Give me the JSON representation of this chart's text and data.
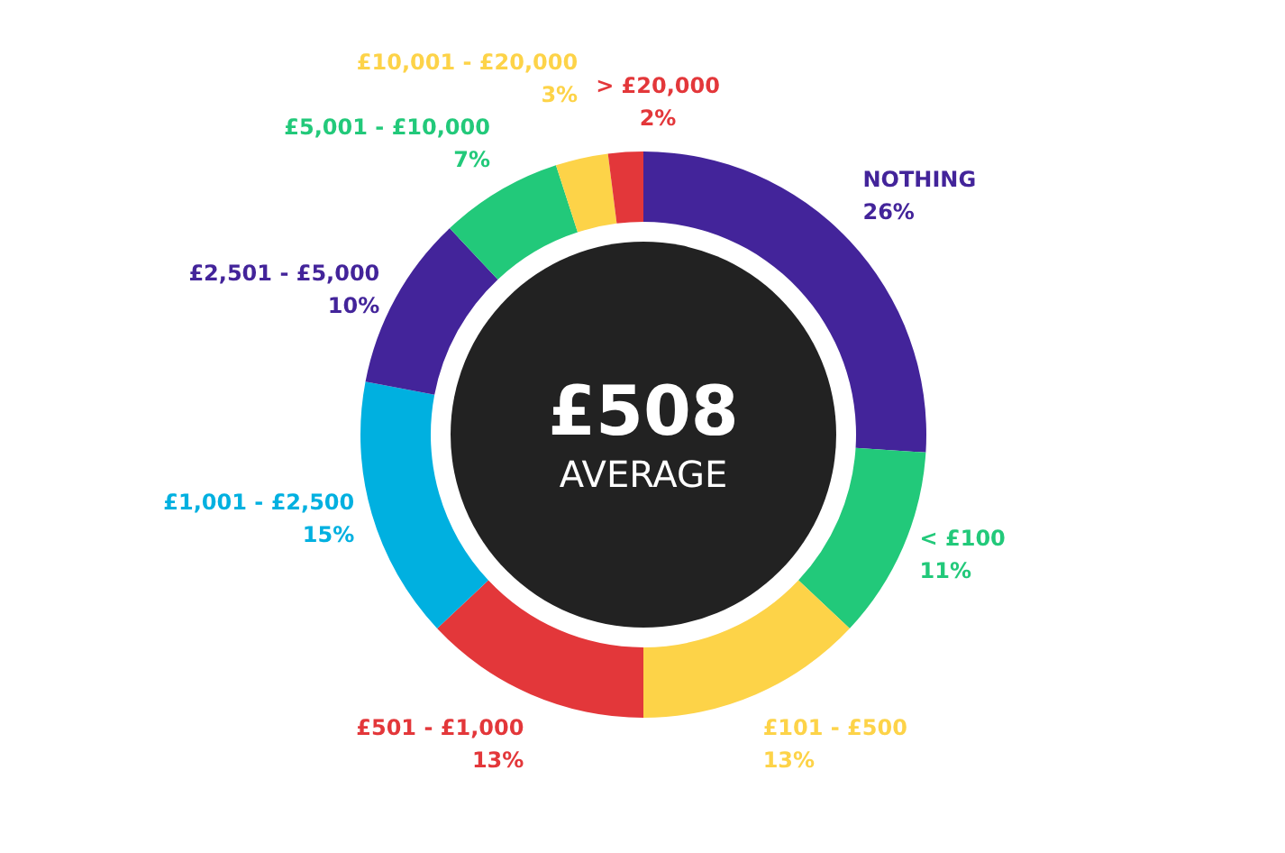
{
  "chart_data": {
    "type": "donut",
    "categories": [
      "NOTHING",
      "< £100",
      "£101 - £500",
      "£501 - £1,000",
      "£1,001 - £2,500",
      "£2,501 - £5,000",
      "£5,001 - £10,000",
      "£10,001 - £20,000",
      "> £20,000"
    ],
    "values": [
      26,
      11,
      13,
      13,
      15,
      10,
      7,
      3,
      2
    ],
    "colors": [
      "#43249a",
      "#22c97a",
      "#fdd348",
      "#e3373a",
      "#00b0e0",
      "#43249a",
      "#22c97a",
      "#fdd348",
      "#e3373a"
    ],
    "value_labels": [
      "26%",
      "11%",
      "13%",
      "13%",
      "15%",
      "10%",
      "7%",
      "3%",
      "2%"
    ],
    "annotations": [
      "£508",
      "AVERAGE"
    ],
    "legend": false
  }
}
